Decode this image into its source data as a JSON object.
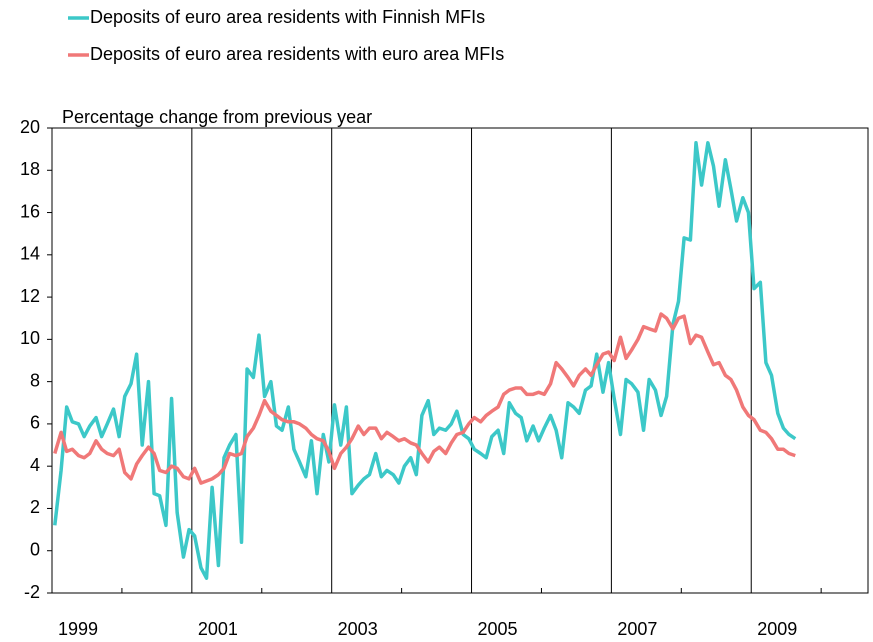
{
  "chart_data": {
    "type": "line",
    "ylabel": "Percentage change from previous year",
    "x": [
      1999.04,
      1999.13,
      1999.21,
      1999.29,
      1999.38,
      1999.46,
      1999.54,
      1999.63,
      1999.71,
      1999.79,
      1999.88,
      1999.96,
      2000.04,
      2000.13,
      2000.21,
      2000.29,
      2000.38,
      2000.46,
      2000.54,
      2000.63,
      2000.71,
      2000.79,
      2000.88,
      2000.96,
      2001.04,
      2001.13,
      2001.21,
      2001.29,
      2001.38,
      2001.46,
      2001.54,
      2001.63,
      2001.71,
      2001.79,
      2001.88,
      2001.96,
      2002.04,
      2002.13,
      2002.21,
      2002.29,
      2002.38,
      2002.46,
      2002.54,
      2002.63,
      2002.71,
      2002.79,
      2002.88,
      2002.96,
      2003.04,
      2003.13,
      2003.21,
      2003.29,
      2003.38,
      2003.46,
      2003.54,
      2003.63,
      2003.71,
      2003.79,
      2003.88,
      2003.96,
      2004.04,
      2004.13,
      2004.21,
      2004.29,
      2004.38,
      2004.46,
      2004.54,
      2004.63,
      2004.71,
      2004.79,
      2004.88,
      2004.96,
      2005.04,
      2005.13,
      2005.21,
      2005.29,
      2005.38,
      2005.46,
      2005.54,
      2005.63,
      2005.71,
      2005.79,
      2005.88,
      2005.96,
      2006.04,
      2006.13,
      2006.21,
      2006.29,
      2006.38,
      2006.46,
      2006.54,
      2006.63,
      2006.71,
      2006.79,
      2006.88,
      2006.96,
      2007.04,
      2007.13,
      2007.21,
      2007.29,
      2007.38,
      2007.46,
      2007.54,
      2007.63,
      2007.71,
      2007.79,
      2007.88,
      2007.96,
      2008.04,
      2008.13,
      2008.21,
      2008.29,
      2008.38,
      2008.46,
      2008.54,
      2008.63,
      2008.71,
      2008.79,
      2008.88,
      2008.96,
      2009.04,
      2009.13,
      2009.21,
      2009.29,
      2009.38,
      2009.46,
      2009.54,
      2009.63
    ],
    "series": [
      {
        "name": "Deposits of euro area residents with Finnish MFIs",
        "color": "#3cc8c8",
        "values": [
          1.2,
          3.8,
          6.8,
          6.1,
          6.0,
          5.4,
          5.9,
          6.3,
          5.4,
          6.0,
          6.7,
          5.4,
          7.3,
          7.9,
          9.3,
          5.0,
          8.0,
          2.7,
          2.6,
          1.2,
          7.2,
          1.8,
          -0.3,
          1.0,
          0.7,
          -0.8,
          -1.3,
          3.0,
          -0.7,
          4.4,
          5.0,
          5.5,
          0.4,
          8.6,
          8.2,
          10.2,
          7.3,
          8.0,
          5.9,
          5.7,
          6.8,
          4.8,
          4.2,
          3.5,
          5.2,
          2.7,
          5.5,
          4.2,
          6.9,
          5.0,
          6.8,
          2.7,
          3.1,
          3.4,
          3.6,
          4.6,
          3.5,
          3.8,
          3.6,
          3.2,
          4.0,
          4.4,
          3.6,
          6.4,
          7.1,
          5.5,
          5.8,
          5.7,
          6.0,
          6.6,
          5.5,
          5.3,
          4.8,
          4.6,
          4.4,
          5.4,
          5.7,
          4.6,
          7.0,
          6.5,
          6.3,
          5.2,
          5.9,
          5.2,
          5.8,
          6.4,
          5.7,
          4.4,
          7.0,
          6.8,
          6.5,
          7.6,
          7.8,
          9.3,
          7.5,
          8.9,
          7.2,
          5.5,
          8.1,
          7.9,
          7.5,
          5.7,
          8.1,
          7.6,
          6.4,
          7.3,
          10.7,
          11.8,
          14.8,
          14.7,
          19.3,
          17.3,
          19.3,
          18.2,
          16.3,
          18.5,
          17.1,
          15.6,
          16.7,
          16.0,
          12.4,
          12.7,
          8.9,
          8.3,
          6.5,
          5.8,
          5.5,
          5.3
        ]
      },
      {
        "name": "Deposits of euro area residents with euro area MFIs",
        "color": "#f07878",
        "values": [
          4.6,
          5.6,
          4.7,
          4.8,
          4.5,
          4.4,
          4.6,
          5.2,
          4.8,
          4.6,
          4.5,
          4.8,
          3.7,
          3.4,
          4.1,
          4.5,
          4.9,
          4.6,
          3.8,
          3.7,
          4.0,
          3.9,
          3.5,
          3.4,
          3.9,
          3.2,
          3.3,
          3.4,
          3.6,
          3.9,
          4.6,
          4.5,
          4.6,
          5.4,
          5.8,
          6.4,
          7.1,
          6.6,
          6.4,
          6.2,
          6.1,
          6.1,
          6.0,
          5.8,
          5.5,
          5.3,
          5.2,
          4.7,
          3.9,
          4.6,
          4.9,
          5.3,
          5.9,
          5.5,
          5.8,
          5.8,
          5.3,
          5.6,
          5.4,
          5.2,
          5.3,
          5.1,
          5.0,
          4.6,
          4.2,
          4.7,
          4.9,
          4.6,
          5.1,
          5.5,
          5.6,
          6.0,
          6.3,
          6.1,
          6.4,
          6.6,
          6.8,
          7.4,
          7.6,
          7.7,
          7.7,
          7.4,
          7.4,
          7.5,
          7.4,
          7.9,
          8.9,
          8.6,
          8.2,
          7.8,
          8.3,
          8.6,
          8.3,
          8.8,
          9.3,
          9.4,
          9.0,
          10.1,
          9.1,
          9.5,
          10.0,
          10.6,
          10.5,
          10.4,
          11.2,
          11.0,
          10.5,
          11.0,
          11.1,
          9.8,
          10.2,
          10.1,
          9.4,
          8.8,
          8.9,
          8.3,
          8.1,
          7.6,
          6.8,
          6.4,
          6.2,
          5.7,
          5.6,
          5.3,
          4.8,
          4.8,
          4.6,
          4.5
        ]
      }
    ],
    "xlim": [
      1999,
      2010.67
    ],
    "xticks": [
      1999,
      2001,
      2003,
      2005,
      2007,
      2009
    ],
    "xminorticks": [
      2000,
      2002,
      2004,
      2006,
      2008,
      2010
    ],
    "ylim": [
      -2,
      20
    ],
    "yticks": [
      -2,
      0,
      2,
      4,
      6,
      8,
      10,
      12,
      14,
      16,
      18,
      20
    ],
    "grid": true,
    "legend": "top-left"
  }
}
